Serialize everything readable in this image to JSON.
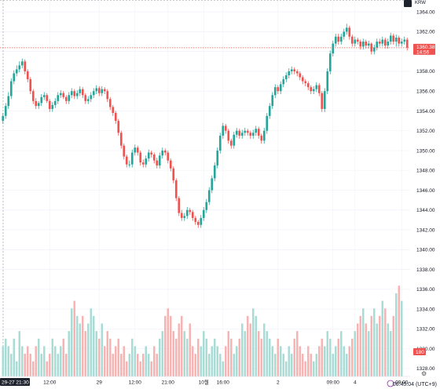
{
  "chart_data": {
    "type": "candlestick",
    "currency": "KRW",
    "last_price_label": "1360.38",
    "last_price_countdown": "14:56",
    "last_price": 1360.38,
    "volume_badge": "180",
    "y_ticks": [
      1328,
      1330,
      1332,
      1334,
      1336,
      1338,
      1340,
      1342,
      1344,
      1346,
      1348,
      1350,
      1352,
      1354,
      1356,
      1358,
      1360,
      1362,
      1364
    ],
    "y_tick_labels": [
      "1328.00",
      "1330.00",
      "1332.00",
      "1334.00",
      "1336.00",
      "1338.00",
      "1340.00",
      "1342.00",
      "1344.00",
      "1346.00",
      "1348.00",
      "1350.00",
      "1352.00",
      "1354.00",
      "1356.00",
      "1358.00",
      "1360.00",
      "1362.00",
      "1364.00"
    ],
    "ylim": [
      1327.2,
      1365.2
    ],
    "x_labels": [
      "29-27  21:30",
      "12:00",
      "29",
      "12:00",
      "21:00",
      "10월",
      "16:00",
      "2",
      "09:00",
      "4",
      "09:00"
    ],
    "up_color": "#26a69a",
    "down_color": "#ef5350",
    "candles": {
      "open": [
        1353.0,
        1353.5,
        1354.5,
        1355.5,
        1357.0,
        1357.8,
        1358.2,
        1358.6,
        1359.0,
        1358.0,
        1357.2,
        1356.0,
        1355.0,
        1354.5,
        1354.8,
        1355.4,
        1355.6,
        1355.0,
        1354.2,
        1354.6,
        1355.0,
        1355.6,
        1355.8,
        1355.4,
        1355.0,
        1355.6,
        1356.0,
        1355.5,
        1355.8,
        1356.2,
        1355.6,
        1355.0,
        1355.2,
        1355.6,
        1356.0,
        1356.3,
        1355.8,
        1356.2,
        1356.0,
        1355.2,
        1354.4,
        1353.8,
        1353.0,
        1351.8,
        1350.5,
        1349.4,
        1348.6,
        1348.6,
        1349.8,
        1350.3,
        1349.8,
        1348.8,
        1348.6,
        1349.2,
        1349.8,
        1349.6,
        1349.0,
        1348.5,
        1349.5,
        1350.0,
        1349.8,
        1349.0,
        1348.2,
        1347.0,
        1345.2,
        1343.7,
        1343.2,
        1343.4,
        1344.0,
        1343.8,
        1343.2,
        1342.8,
        1342.5,
        1343.2,
        1344.0,
        1344.8,
        1346.0,
        1347.2,
        1348.5,
        1350.0,
        1351.5,
        1352.5,
        1352.0,
        1351.0,
        1350.5,
        1351.6,
        1352.0,
        1351.5,
        1351.8,
        1352.0,
        1351.8,
        1351.5,
        1351.8,
        1352.2,
        1351.5,
        1351.0,
        1352.0,
        1353.5,
        1354.5,
        1355.6,
        1356.4,
        1356.0,
        1356.7,
        1357.2,
        1357.6,
        1358.0,
        1358.2,
        1358.0,
        1357.8,
        1357.4,
        1357.0,
        1356.8,
        1356.4,
        1356.0,
        1356.2,
        1356.6,
        1355.8,
        1354.2,
        1356.0,
        1358.0,
        1359.8,
        1360.8,
        1361.5,
        1361.0,
        1361.5,
        1362.0,
        1362.4,
        1361.5,
        1360.8,
        1361.2,
        1361.0,
        1360.5,
        1361.0,
        1360.6,
        1360.8,
        1360.0,
        1360.4,
        1361.0,
        1360.8,
        1361.2,
        1360.6,
        1361.0,
        1361.6,
        1361.0,
        1361.4,
        1360.8,
        1361.0,
        1361.2
      ],
      "close": [
        1353.5,
        1354.5,
        1355.5,
        1357.0,
        1357.8,
        1358.2,
        1358.6,
        1359.0,
        1358.0,
        1357.2,
        1356.0,
        1355.0,
        1354.5,
        1354.8,
        1355.4,
        1355.6,
        1355.0,
        1354.2,
        1354.6,
        1355.0,
        1355.6,
        1355.8,
        1355.4,
        1355.0,
        1355.6,
        1356.0,
        1355.5,
        1355.8,
        1356.2,
        1355.6,
        1355.0,
        1355.2,
        1355.6,
        1356.0,
        1356.3,
        1355.8,
        1356.2,
        1356.0,
        1355.2,
        1354.4,
        1353.8,
        1353.0,
        1351.8,
        1350.5,
        1349.4,
        1348.6,
        1348.6,
        1349.8,
        1350.3,
        1349.8,
        1348.8,
        1348.6,
        1349.2,
        1349.8,
        1349.6,
        1349.0,
        1348.5,
        1349.5,
        1350.0,
        1349.8,
        1349.0,
        1348.2,
        1347.0,
        1345.2,
        1343.7,
        1343.2,
        1343.4,
        1344.0,
        1343.8,
        1343.2,
        1342.8,
        1342.5,
        1343.2,
        1344.0,
        1344.8,
        1346.0,
        1347.2,
        1348.5,
        1350.0,
        1351.5,
        1352.5,
        1352.0,
        1351.0,
        1350.5,
        1351.6,
        1352.0,
        1351.5,
        1351.8,
        1352.0,
        1351.8,
        1351.5,
        1351.8,
        1352.2,
        1351.5,
        1351.0,
        1352.0,
        1353.5,
        1354.5,
        1355.6,
        1356.4,
        1356.0,
        1356.7,
        1357.2,
        1357.6,
        1358.0,
        1358.2,
        1358.0,
        1357.8,
        1357.4,
        1357.0,
        1356.8,
        1356.4,
        1356.0,
        1356.2,
        1356.6,
        1355.8,
        1354.2,
        1356.0,
        1358.0,
        1359.8,
        1360.8,
        1361.5,
        1361.0,
        1361.5,
        1362.0,
        1362.4,
        1361.5,
        1360.8,
        1361.2,
        1361.0,
        1360.5,
        1361.0,
        1360.6,
        1360.8,
        1360.0,
        1360.4,
        1361.0,
        1360.8,
        1361.2,
        1360.6,
        1361.0,
        1361.6,
        1361.0,
        1361.4,
        1360.8,
        1361.0,
        1361.2,
        1360.4
      ],
      "high": [
        1353.8,
        1354.8,
        1355.9,
        1357.3,
        1358.1,
        1358.6,
        1359.0,
        1359.3,
        1359.2,
        1358.2,
        1357.4,
        1356.2,
        1355.3,
        1355.0,
        1355.7,
        1355.9,
        1355.8,
        1355.2,
        1354.9,
        1355.3,
        1355.9,
        1356.1,
        1356.0,
        1355.6,
        1355.9,
        1356.3,
        1356.2,
        1356.1,
        1356.5,
        1356.4,
        1355.8,
        1355.5,
        1355.9,
        1356.3,
        1356.6,
        1356.5,
        1356.5,
        1356.4,
        1356.2,
        1355.4,
        1354.6,
        1354.0,
        1353.2,
        1352.0,
        1350.7,
        1349.6,
        1349.0,
        1350.1,
        1350.6,
        1350.5,
        1350.0,
        1349.1,
        1349.5,
        1350.1,
        1350.0,
        1349.8,
        1349.3,
        1349.8,
        1350.3,
        1350.2,
        1350.0,
        1349.2,
        1348.4,
        1347.2,
        1345.4,
        1344.0,
        1343.7,
        1344.3,
        1344.2,
        1344.0,
        1343.4,
        1343.0,
        1343.5,
        1344.3,
        1345.1,
        1346.3,
        1347.5,
        1348.8,
        1350.3,
        1351.8,
        1352.8,
        1352.7,
        1352.2,
        1351.2,
        1351.9,
        1352.3,
        1352.2,
        1352.1,
        1352.3,
        1352.2,
        1352.0,
        1352.1,
        1352.5,
        1352.4,
        1351.7,
        1352.3,
        1353.8,
        1354.8,
        1355.9,
        1356.7,
        1356.6,
        1357.0,
        1357.5,
        1357.9,
        1358.3,
        1358.5,
        1358.4,
        1358.2,
        1358.0,
        1357.6,
        1357.2,
        1357.0,
        1356.6,
        1356.5,
        1356.9,
        1356.8,
        1356.0,
        1356.3,
        1358.3,
        1360.1,
        1361.1,
        1361.8,
        1361.8,
        1361.8,
        1362.3,
        1362.8,
        1362.6,
        1361.7,
        1361.5,
        1361.4,
        1361.2,
        1361.3,
        1361.2,
        1361.1,
        1360.9,
        1360.7,
        1361.3,
        1361.3,
        1361.5,
        1361.4,
        1361.3,
        1361.9,
        1361.8,
        1361.7,
        1361.6,
        1361.3,
        1361.5,
        1361.4
      ],
      "low": [
        1352.7,
        1353.2,
        1354.2,
        1355.2,
        1356.7,
        1357.5,
        1357.9,
        1358.3,
        1357.7,
        1356.9,
        1355.7,
        1354.7,
        1354.2,
        1354.2,
        1354.5,
        1355.1,
        1354.8,
        1353.9,
        1353.9,
        1354.3,
        1354.7,
        1355.3,
        1355.2,
        1354.7,
        1354.7,
        1355.3,
        1355.2,
        1355.2,
        1355.5,
        1355.3,
        1354.7,
        1354.7,
        1354.9,
        1355.3,
        1355.7,
        1355.5,
        1355.5,
        1355.7,
        1354.9,
        1354.1,
        1353.5,
        1352.7,
        1351.5,
        1350.2,
        1349.1,
        1348.3,
        1348.3,
        1348.3,
        1349.5,
        1349.5,
        1348.5,
        1348.3,
        1348.3,
        1348.9,
        1349.3,
        1348.7,
        1348.2,
        1348.2,
        1349.2,
        1349.5,
        1348.7,
        1347.9,
        1346.7,
        1344.9,
        1343.4,
        1342.9,
        1342.9,
        1343.1,
        1343.5,
        1342.9,
        1342.5,
        1342.2,
        1342.2,
        1342.9,
        1343.7,
        1344.5,
        1345.7,
        1346.9,
        1348.2,
        1349.7,
        1351.2,
        1351.7,
        1350.7,
        1350.2,
        1350.2,
        1351.3,
        1351.2,
        1351.2,
        1351.5,
        1351.5,
        1351.2,
        1351.2,
        1351.5,
        1351.2,
        1350.7,
        1350.7,
        1351.7,
        1353.2,
        1354.2,
        1355.3,
        1355.7,
        1355.7,
        1356.4,
        1356.9,
        1357.3,
        1357.7,
        1357.7,
        1357.5,
        1357.1,
        1356.7,
        1356.5,
        1356.1,
        1355.7,
        1355.7,
        1355.9,
        1355.5,
        1353.9,
        1353.9,
        1355.7,
        1357.7,
        1359.5,
        1360.5,
        1360.7,
        1360.7,
        1361.2,
        1361.7,
        1361.2,
        1360.5,
        1360.5,
        1360.7,
        1360.2,
        1360.2,
        1360.3,
        1360.3,
        1359.7,
        1359.7,
        1360.1,
        1360.5,
        1360.5,
        1360.3,
        1360.3,
        1360.7,
        1360.7,
        1360.5,
        1360.5,
        1360.5,
        1360.7,
        1360.1
      ]
    },
    "volume": [
      4,
      5,
      4,
      3,
      5,
      2,
      6,
      4,
      3,
      4,
      3,
      2,
      4,
      5,
      3,
      4,
      2,
      3,
      5,
      4,
      3,
      4,
      5,
      3,
      6,
      9,
      10,
      8,
      7,
      8,
      6,
      7,
      9,
      8,
      6,
      5,
      7,
      4,
      6,
      5,
      3,
      4,
      5,
      3,
      4,
      2,
      3,
      5,
      4,
      3,
      2,
      3,
      4,
      3,
      2,
      4,
      3,
      5,
      6,
      8,
      9,
      8,
      6,
      5,
      7,
      8,
      6,
      5,
      7,
      4,
      3,
      5,
      4,
      6,
      5,
      3,
      4,
      5,
      4,
      3,
      2,
      4,
      6,
      5,
      3,
      4,
      5,
      7,
      6,
      8,
      7,
      9,
      8,
      6,
      5,
      7,
      6,
      5,
      4,
      3,
      5,
      4,
      3,
      2,
      4,
      3,
      5,
      6,
      4,
      3,
      2,
      4,
      3,
      2,
      3,
      4,
      5,
      4,
      6,
      5,
      3,
      4,
      5,
      6,
      4,
      3,
      4,
      5,
      6,
      7,
      8,
      9,
      7,
      6,
      8,
      9,
      7,
      8,
      10,
      9,
      7,
      6,
      8,
      11,
      12,
      10
    ],
    "volume_scale_max": 14
  }
}
